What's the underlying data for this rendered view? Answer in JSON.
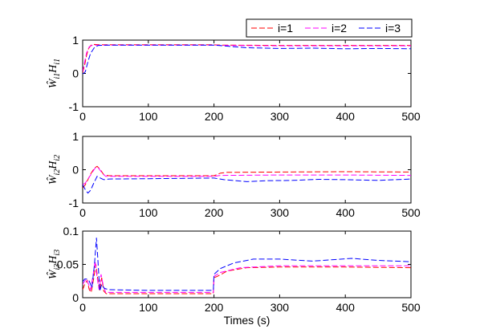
{
  "chart_data": [
    {
      "type": "line",
      "ylabel_main": "Ŵ",
      "ylabel_sub1": "i1",
      "ylabel_mid": "H",
      "ylabel_sub2": "i1",
      "xlim": [
        0,
        500
      ],
      "ylim": [
        -1,
        1
      ],
      "xticks": [
        "0",
        "100",
        "200",
        "300",
        "400",
        "500"
      ],
      "yticks": [
        "1",
        "0",
        "-1"
      ],
      "ytick_values": [
        1,
        0,
        -1
      ],
      "series": [
        {
          "name": "i=1",
          "color": "#ff0000",
          "points": [
            [
              0,
              0.02
            ],
            [
              3,
              0.25
            ],
            [
              6,
              0.55
            ],
            [
              9,
              0.75
            ],
            [
              13,
              0.85
            ],
            [
              18,
              0.87
            ],
            [
              25,
              0.86
            ],
            [
              60,
              0.86
            ],
            [
              100,
              0.86
            ],
            [
              200,
              0.86
            ],
            [
              210,
              0.85
            ],
            [
              300,
              0.84
            ],
            [
              400,
              0.84
            ],
            [
              500,
              0.84
            ]
          ]
        },
        {
          "name": "i=2",
          "color": "#ff00ff",
          "points": [
            [
              0,
              0.05
            ],
            [
              3,
              0.35
            ],
            [
              6,
              0.62
            ],
            [
              10,
              0.8
            ],
            [
              15,
              0.85
            ],
            [
              25,
              0.85
            ],
            [
              100,
              0.85
            ],
            [
              200,
              0.85
            ],
            [
              210,
              0.84
            ],
            [
              300,
              0.83
            ],
            [
              400,
              0.83
            ],
            [
              500,
              0.83
            ]
          ]
        },
        {
          "name": "i=3",
          "color": "#0000ff",
          "points": [
            [
              0,
              -0.02
            ],
            [
              4,
              0.05
            ],
            [
              8,
              0.35
            ],
            [
              12,
              0.6
            ],
            [
              18,
              0.78
            ],
            [
              24,
              0.84
            ],
            [
              40,
              0.85
            ],
            [
              100,
              0.85
            ],
            [
              200,
              0.85
            ],
            [
              220,
              0.82
            ],
            [
              250,
              0.77
            ],
            [
              300,
              0.75
            ],
            [
              350,
              0.76
            ],
            [
              400,
              0.74
            ],
            [
              450,
              0.75
            ],
            [
              500,
              0.74
            ]
          ]
        }
      ]
    },
    {
      "type": "line",
      "ylabel_main": "Ŵ",
      "ylabel_sub1": "i2",
      "ylabel_mid": "H",
      "ylabel_sub2": "i2",
      "xlim": [
        0,
        500
      ],
      "ylim": [
        -1,
        1
      ],
      "xticks": [
        "0",
        "100",
        "200",
        "300",
        "400",
        "500"
      ],
      "yticks": [
        "1",
        "0",
        "-1"
      ],
      "ytick_values": [
        1,
        0,
        -1
      ],
      "series": [
        {
          "name": "i=1",
          "color": "#ff0000",
          "points": [
            [
              0,
              -0.55
            ],
            [
              4,
              -0.45
            ],
            [
              8,
              -0.3
            ],
            [
              13,
              -0.1
            ],
            [
              18,
              0.05
            ],
            [
              22,
              0.1
            ],
            [
              27,
              0.0
            ],
            [
              32,
              -0.15
            ],
            [
              40,
              -0.18
            ],
            [
              100,
              -0.18
            ],
            [
              200,
              -0.18
            ],
            [
              210,
              -0.1
            ],
            [
              220,
              -0.08
            ],
            [
              300,
              -0.07
            ],
            [
              400,
              -0.06
            ],
            [
              500,
              -0.07
            ]
          ]
        },
        {
          "name": "i=2",
          "color": "#ff00ff",
          "points": [
            [
              0,
              -0.45
            ],
            [
              4,
              -0.4
            ],
            [
              9,
              -0.25
            ],
            [
              14,
              -0.1
            ],
            [
              19,
              0.05
            ],
            [
              24,
              0.05
            ],
            [
              29,
              -0.08
            ],
            [
              35,
              -0.2
            ],
            [
              100,
              -0.2
            ],
            [
              200,
              -0.2
            ],
            [
              210,
              -0.17
            ],
            [
              300,
              -0.16
            ],
            [
              400,
              -0.16
            ],
            [
              500,
              -0.17
            ]
          ]
        },
        {
          "name": "i=3",
          "color": "#0000ff",
          "points": [
            [
              0,
              -0.45
            ],
            [
              4,
              -0.6
            ],
            [
              8,
              -0.7
            ],
            [
              12,
              -0.62
            ],
            [
              17,
              -0.4
            ],
            [
              22,
              -0.2
            ],
            [
              27,
              -0.25
            ],
            [
              32,
              -0.3
            ],
            [
              40,
              -0.28
            ],
            [
              100,
              -0.27
            ],
            [
              200,
              -0.25
            ],
            [
              215,
              -0.3
            ],
            [
              250,
              -0.36
            ],
            [
              280,
              -0.33
            ],
            [
              320,
              -0.32
            ],
            [
              360,
              -0.29
            ],
            [
              400,
              -0.3
            ],
            [
              450,
              -0.32
            ],
            [
              500,
              -0.28
            ]
          ]
        }
      ]
    },
    {
      "type": "line",
      "ylabel_main": "Ŵ",
      "ylabel_sub1": "i3",
      "ylabel_mid": "H",
      "ylabel_sub2": "i3",
      "xlabel": "Times (s)",
      "xlim": [
        0,
        500
      ],
      "ylim": [
        0,
        0.1
      ],
      "xticks": [
        "0",
        "100",
        "200",
        "300",
        "400",
        "500"
      ],
      "yticks": [
        "0.1",
        "0.05",
        "0"
      ],
      "ytick_values": [
        0.1,
        0.05,
        0
      ],
      "series": [
        {
          "name": "i=1",
          "color": "#ff0000",
          "points": [
            [
              0,
              0.012
            ],
            [
              3,
              0.02
            ],
            [
              7,
              0.026
            ],
            [
              10,
              0.012
            ],
            [
              13,
              0.008
            ],
            [
              17,
              0.03
            ],
            [
              20,
              0.05
            ],
            [
              23,
              0.028
            ],
            [
              26,
              0.01
            ],
            [
              29,
              0.03
            ],
            [
              32,
              0.01
            ],
            [
              36,
              0.006
            ],
            [
              60,
              0.006
            ],
            [
              100,
              0.006
            ],
            [
              199,
              0.006
            ],
            [
              200,
              0.03
            ],
            [
              205,
              0.032
            ],
            [
              220,
              0.04
            ],
            [
              250,
              0.045
            ],
            [
              300,
              0.046
            ],
            [
              400,
              0.046
            ],
            [
              500,
              0.045
            ]
          ]
        },
        {
          "name": "i=2",
          "color": "#ff00ff",
          "points": [
            [
              0,
              0.02
            ],
            [
              3,
              0.025
            ],
            [
              6,
              0.028
            ],
            [
              9,
              0.02
            ],
            [
              12,
              0.012
            ],
            [
              16,
              0.035
            ],
            [
              19,
              0.055
            ],
            [
              22,
              0.03
            ],
            [
              25,
              0.012
            ],
            [
              28,
              0.035
            ],
            [
              31,
              0.02
            ],
            [
              35,
              0.008
            ],
            [
              60,
              0.008
            ],
            [
              100,
              0.008
            ],
            [
              199,
              0.008
            ],
            [
              200,
              0.032
            ],
            [
              210,
              0.038
            ],
            [
              240,
              0.045
            ],
            [
              300,
              0.048
            ],
            [
              400,
              0.048
            ],
            [
              500,
              0.048
            ]
          ]
        },
        {
          "name": "i=3",
          "color": "#0000ff",
          "points": [
            [
              0,
              0.024
            ],
            [
              3,
              0.028
            ],
            [
              6,
              0.028
            ],
            [
              10,
              0.025
            ],
            [
              14,
              0.015
            ],
            [
              18,
              0.05
            ],
            [
              21,
              0.09
            ],
            [
              23,
              0.06
            ],
            [
              26,
              0.01
            ],
            [
              29,
              0.02
            ],
            [
              33,
              0.014
            ],
            [
              40,
              0.012
            ],
            [
              100,
              0.011
            ],
            [
              199,
              0.011
            ],
            [
              200,
              0.035
            ],
            [
              210,
              0.044
            ],
            [
              230,
              0.052
            ],
            [
              260,
              0.058
            ],
            [
              300,
              0.058
            ],
            [
              350,
              0.055
            ],
            [
              410,
              0.059
            ],
            [
              450,
              0.056
            ],
            [
              500,
              0.054
            ]
          ]
        }
      ]
    }
  ],
  "legend": {
    "entries": [
      "i=1",
      "i=2",
      "i=3"
    ],
    "colors": [
      "#ff0000",
      "#ff00ff",
      "#0000ff"
    ],
    "placement": "top-right"
  }
}
